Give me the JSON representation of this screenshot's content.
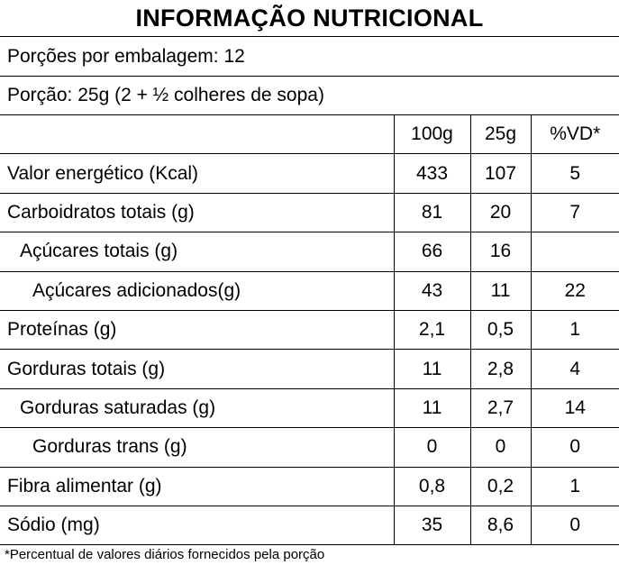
{
  "label": {
    "title": "INFORMAÇÃO NUTRICIONAL",
    "servings_per_package": "Porções por embalagem: 12",
    "serving_size": "Porção: 25g (2 + ½  colheres de sopa)",
    "columns": [
      "100g",
      "25g",
      "%VD*"
    ],
    "rows": [
      {
        "name": "Valor energético (Kcal)",
        "indent": 0,
        "per100g": "433",
        "per25g": "107",
        "vd": "5"
      },
      {
        "name": "Carboidratos totais (g)",
        "indent": 0,
        "per100g": "81",
        "per25g": "20",
        "vd": "7"
      },
      {
        "name": "Açúcares totais (g)",
        "indent": 1,
        "per100g": "66",
        "per25g": "16",
        "vd": ""
      },
      {
        "name": "Açúcares adicionados(g)",
        "indent": 2,
        "per100g": "43",
        "per25g": "11",
        "vd": "22"
      },
      {
        "name": "Proteínas (g)",
        "indent": 0,
        "per100g": "2,1",
        "per25g": "0,5",
        "vd": "1"
      },
      {
        "name": "Gorduras totais (g)",
        "indent": 0,
        "per100g": "11",
        "per25g": "2,8",
        "vd": "4"
      },
      {
        "name": "Gorduras saturadas (g)",
        "indent": 1,
        "per100g": "11",
        "per25g": "2,7",
        "vd": "14"
      },
      {
        "name": "Gorduras trans (g)",
        "indent": 2,
        "per100g": "0",
        "per25g": "0",
        "vd": "0"
      },
      {
        "name": "Fibra alimentar (g)",
        "indent": 0,
        "per100g": "0,8",
        "per25g": "0,2",
        "vd": "1"
      },
      {
        "name": "Sódio (mg)",
        "indent": 0,
        "per100g": "35",
        "per25g": "8,6",
        "vd": "0"
      }
    ],
    "footnote": "*Percentual de valores diários fornecidos pela porção"
  }
}
